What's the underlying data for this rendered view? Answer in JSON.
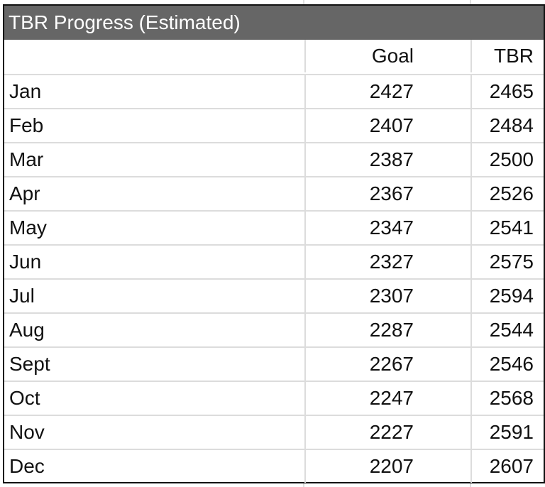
{
  "title": "TBR Progress (Estimated)",
  "columns": [
    "",
    "Goal",
    "TBR"
  ],
  "rows": [
    [
      "Jan",
      "2427",
      "2465"
    ],
    [
      "Feb",
      "2407",
      "2484"
    ],
    [
      "Mar",
      "2387",
      "2500"
    ],
    [
      "Apr",
      "2367",
      "2526"
    ],
    [
      "May",
      "2347",
      "2541"
    ],
    [
      "Jun",
      "2327",
      "2575"
    ],
    [
      "Jul",
      "2307",
      "2594"
    ],
    [
      "Aug",
      "2287",
      "2544"
    ],
    [
      "Sept",
      "2267",
      "2546"
    ],
    [
      "Oct",
      "2247",
      "2568"
    ],
    [
      "Nov",
      "2227",
      "2591"
    ],
    [
      "Dec",
      "2207",
      "2607"
    ]
  ]
}
